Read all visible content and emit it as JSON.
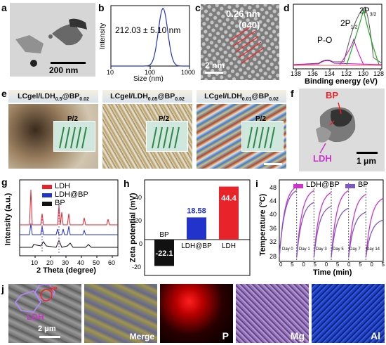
{
  "figure": {
    "panels": {
      "a": {
        "letter": "a",
        "scalebar": "200 nm"
      },
      "b": {
        "letter": "b",
        "annotation": "212.03 ± 5.10 nm",
        "xlabel": "Size (nm)",
        "ylabel": "Intensity",
        "xticks": [
          "10",
          "100",
          "1000"
        ]
      },
      "c": {
        "letter": "c",
        "d_spacing": "0.26 nm",
        "plane": "(040)",
        "scalebar": "2 nm"
      },
      "d": {
        "letter": "d",
        "xlabel": "Binding energy (eV)",
        "xticks": [
          "138",
          "136",
          "134",
          "132",
          "130",
          "128"
        ],
        "peak_po": "P-O",
        "peak_2p12": "2P",
        "peak_2p12_sub": "1/2",
        "peak_2p32": "2P",
        "peak_2p32_sub": "3/2"
      },
      "e": {
        "letter": "e",
        "titles": [
          {
            "main": "LCgel/LDH",
            "s1": "0.5",
            "mid": "@BP",
            "s2": "0.02"
          },
          {
            "main": "LCgel/LDH",
            "s1": "0.05",
            "mid": "@BP",
            "s2": "0.02"
          },
          {
            "main": "LCgel/LDH",
            "s1": "0.01",
            "mid": "@BP",
            "s2": "0.02"
          }
        ],
        "inset_label": "P/2"
      },
      "f": {
        "letter": "f",
        "bp_label": "BP",
        "ldh_label": "LDH",
        "scalebar": "1 μm"
      },
      "g": {
        "letter": "g",
        "xlabel": "2 Theta (degree)",
        "ylabel": "Intensity (a.u.)",
        "xticks": [
          "10",
          "20",
          "30",
          "40",
          "50",
          "60"
        ],
        "legend": [
          "LDH",
          "LDH@BP",
          "BP"
        ]
      },
      "h": {
        "letter": "h",
        "ylabel": "Zeta potential (mV)",
        "yticks": [
          "40",
          "20",
          "0",
          "-20"
        ]
      },
      "i": {
        "letter": "i",
        "xlabel": "Time (min)",
        "ylabel": "Temperature (°C)",
        "yticks": [
          "48",
          "44",
          "40",
          "36",
          "32",
          "28"
        ],
        "xticks": [
          "0",
          "5",
          "0",
          "5",
          "0",
          "5",
          "0",
          "5",
          "0",
          "5"
        ],
        "legend": [
          "LDH@BP",
          "BP"
        ],
        "days": [
          "Day 0",
          "Day 1",
          "Day 3",
          "Day 5",
          "Day 7",
          "Day 14"
        ]
      },
      "j": {
        "letter": "j",
        "ldh_label": "LDH",
        "bp_label": "BP",
        "scalebar": "2 μm",
        "maps": [
          "Merge",
          "P",
          "Mg",
          "Al"
        ]
      }
    },
    "colors": {
      "ldh": "#e8232a",
      "ldhbp": "#2233cc",
      "bp": "#111111",
      "curve_ldhbp": "#cc33cc",
      "curve_bp": "#7e57c2",
      "mapP": "#ff1a1a",
      "mapMg": "#c9a6f0",
      "mapAl": "#3366ff"
    }
  },
  "chart_data": [
    {
      "type": "bar",
      "panel": "h",
      "categories": [
        "BP",
        "LDH@BP",
        "LDH"
      ],
      "values": [
        -22.1,
        18.58,
        44.4
      ],
      "ylabel": "Zeta potential (mV)",
      "ylim": [
        -30,
        50
      ]
    },
    {
      "type": "line",
      "panel": "b",
      "xlabel": "Size (nm)",
      "ylabel": "Intensity",
      "xscale": "log",
      "xlim": [
        10,
        1000
      ],
      "peak_center": 212.03
    },
    {
      "type": "line",
      "panel": "i",
      "xlabel": "Time (min)",
      "ylabel": "Temperature (°C)",
      "ylim": [
        28,
        48
      ],
      "series": [
        {
          "name": "LDH@BP",
          "peaks": [
            47,
            46,
            45.5,
            46,
            45,
            44
          ]
        },
        {
          "name": "BP",
          "peaks": [
            46,
            43,
            42,
            41.5,
            40.5,
            38.5
          ]
        }
      ]
    }
  ]
}
